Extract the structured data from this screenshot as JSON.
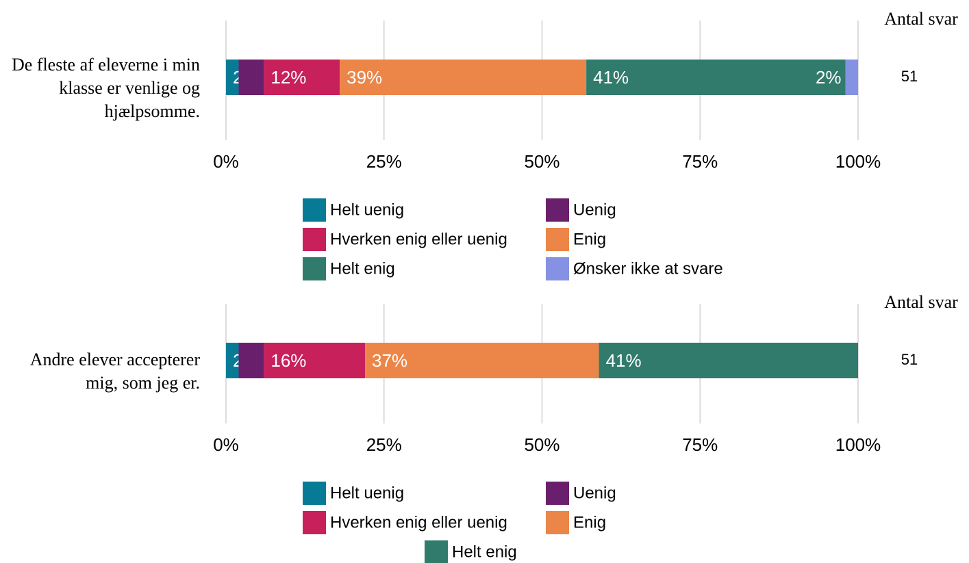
{
  "chart_data": [
    {
      "type": "stacked-bar-horizontal",
      "categories": [
        "De fleste af eleverne i min klasse er venlige og hjælpsomme."
      ],
      "series": [
        {
          "name": "Helt uenig",
          "color": "#077b96",
          "values": [
            2
          ],
          "value_labels": [
            "2%"
          ]
        },
        {
          "name": "Uenig",
          "color": "#6a1f6c",
          "values": [
            4
          ],
          "value_labels": [
            null
          ]
        },
        {
          "name": "Hverken enig eller uenig",
          "color": "#c8205a",
          "values": [
            12
          ],
          "value_labels": [
            "12%"
          ]
        },
        {
          "name": "Enig",
          "color": "#eb8648",
          "values": [
            39
          ],
          "value_labels": [
            "39%"
          ]
        },
        {
          "name": "Helt enig",
          "color": "#317b6d",
          "values": [
            41
          ],
          "value_labels": [
            "41%"
          ]
        },
        {
          "name": "Ønsker ikke at svare",
          "color": "#8591e3",
          "values": [
            2
          ],
          "value_labels": [
            "2%"
          ]
        }
      ],
      "xlim": [
        0,
        100
      ],
      "xticks": [
        {
          "value": 0,
          "label": "0%"
        },
        {
          "value": 25,
          "label": "25%"
        },
        {
          "value": 50,
          "label": "50%"
        },
        {
          "value": 75,
          "label": "75%"
        },
        {
          "value": 100,
          "label": "100%"
        }
      ],
      "grid": true,
      "count_header": "Antal svar",
      "counts": [
        51
      ],
      "legend": "bottom"
    },
    {
      "type": "stacked-bar-horizontal",
      "categories": [
        "Andre elever accepterer mig, som jeg er."
      ],
      "series": [
        {
          "name": "Helt uenig",
          "color": "#077b96",
          "values": [
            2
          ],
          "value_labels": [
            "2%"
          ]
        },
        {
          "name": "Uenig",
          "color": "#6a1f6c",
          "values": [
            4
          ],
          "value_labels": [
            null
          ]
        },
        {
          "name": "Hverken enig eller uenig",
          "color": "#c8205a",
          "values": [
            16
          ],
          "value_labels": [
            "16%"
          ]
        },
        {
          "name": "Enig",
          "color": "#eb8648",
          "values": [
            37
          ],
          "value_labels": [
            "37%"
          ]
        },
        {
          "name": "Helt enig",
          "color": "#317b6d",
          "values": [
            41
          ],
          "value_labels": [
            "41%"
          ]
        }
      ],
      "xlim": [
        0,
        100
      ],
      "xticks": [
        {
          "value": 0,
          "label": "0%"
        },
        {
          "value": 25,
          "label": "25%"
        },
        {
          "value": 50,
          "label": "50%"
        },
        {
          "value": 75,
          "label": "75%"
        },
        {
          "value": 100,
          "label": "100%"
        }
      ],
      "grid": true,
      "count_header": "Antal svar",
      "counts": [
        51
      ],
      "legend": "bottom"
    }
  ]
}
